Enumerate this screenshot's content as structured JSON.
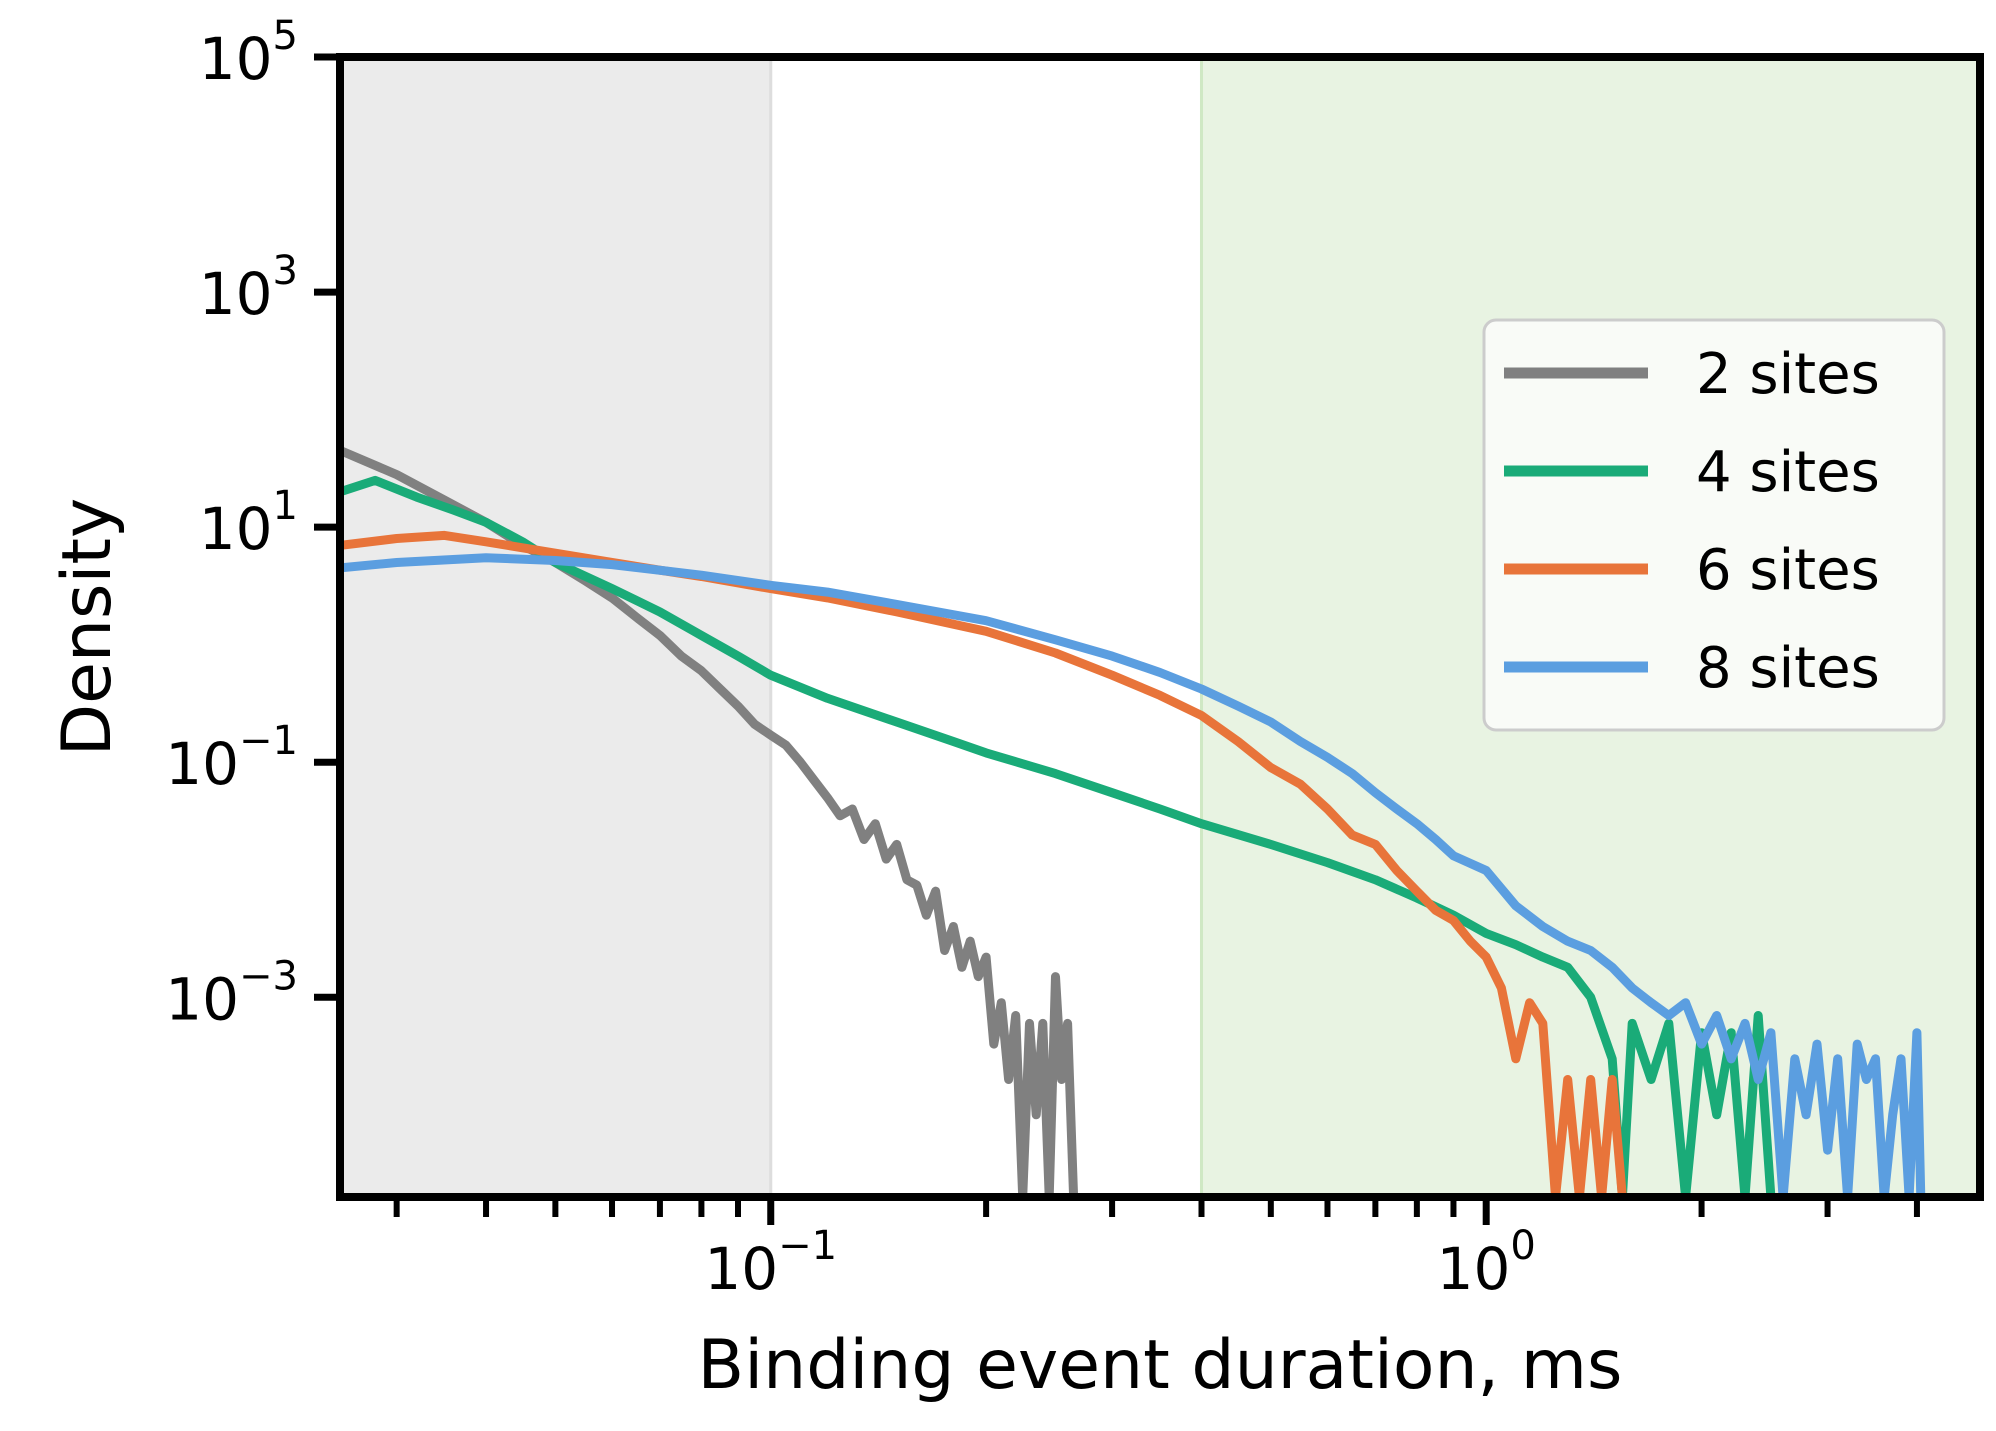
{
  "chart_data": {
    "type": "line",
    "title": "",
    "xlabel": "Binding event duration, ms",
    "ylabel": "Density",
    "xscale": "log",
    "yscale": "log",
    "xlim": [
      0.025,
      4.9
    ],
    "ylim": [
      2e-05,
      100000
    ],
    "grid": false,
    "legend_position": "center-right",
    "x_ticks": [
      {
        "base": "10",
        "exp": "−1",
        "value": 0.1
      },
      {
        "base": "10",
        "exp": "0",
        "value": 1
      }
    ],
    "y_ticks": [
      {
        "base": "10",
        "exp": "−3",
        "value": 0.001
      },
      {
        "base": "10",
        "exp": "−1",
        "value": 0.1
      },
      {
        "base": "10",
        "exp": "1",
        "value": 10
      },
      {
        "base": "10",
        "exp": "3",
        "value": 1000
      },
      {
        "base": "10",
        "exp": "5",
        "value": 100000
      }
    ],
    "shaded_regions": [
      {
        "x0": 0.025,
        "x1": 0.1,
        "color": "#ebebeb",
        "edge": "#dddddd"
      },
      {
        "x0": 0.4,
        "x1": 4.9,
        "color": "#e8f3e2",
        "edge": "#cfe8c4"
      }
    ],
    "series": [
      {
        "name": "2 sites",
        "color": "#808080",
        "points": [
          [
            0.025,
            45
          ],
          [
            0.03,
            28
          ],
          [
            0.035,
            17
          ],
          [
            0.04,
            11
          ],
          [
            0.045,
            7
          ],
          [
            0.05,
            5
          ],
          [
            0.055,
            3.5
          ],
          [
            0.06,
            2.5
          ],
          [
            0.065,
            1.7
          ],
          [
            0.07,
            1.2
          ],
          [
            0.075,
            0.8
          ],
          [
            0.08,
            0.6
          ],
          [
            0.085,
            0.42
          ],
          [
            0.09,
            0.3
          ],
          [
            0.095,
            0.21
          ],
          [
            0.1,
            0.17
          ],
          [
            0.105,
            0.14
          ],
          [
            0.11,
            0.1
          ],
          [
            0.115,
            0.07
          ],
          [
            0.12,
            0.05
          ],
          [
            0.125,
            0.035
          ],
          [
            0.13,
            0.04
          ],
          [
            0.135,
            0.022
          ],
          [
            0.14,
            0.03
          ],
          [
            0.145,
            0.015
          ],
          [
            0.15,
            0.02
          ],
          [
            0.155,
            0.01
          ],
          [
            0.16,
            0.009
          ],
          [
            0.165,
            0.005
          ],
          [
            0.17,
            0.008
          ],
          [
            0.175,
            0.0025
          ],
          [
            0.18,
            0.004
          ],
          [
            0.185,
            0.0018
          ],
          [
            0.19,
            0.003
          ],
          [
            0.195,
            0.0015
          ],
          [
            0.2,
            0.0022
          ],
          [
            0.205,
            0.0004
          ],
          [
            0.21,
            0.0009
          ],
          [
            0.215,
            0.0002
          ],
          [
            0.22,
            0.0007
          ],
          [
            0.225,
            2e-05
          ],
          [
            0.23,
            0.0006
          ],
          [
            0.235,
            0.0001
          ],
          [
            0.24,
            0.0006
          ],
          [
            0.245,
            2e-05
          ],
          [
            0.25,
            0.0015
          ],
          [
            0.255,
            0.0002
          ],
          [
            0.26,
            0.0006
          ],
          [
            0.265,
            2e-05
          ]
        ]
      },
      {
        "name": "4 sites",
        "color": "#1aab78",
        "points": [
          [
            0.025,
            20
          ],
          [
            0.028,
            25
          ],
          [
            0.032,
            18
          ],
          [
            0.036,
            14
          ],
          [
            0.04,
            11
          ],
          [
            0.045,
            7.5
          ],
          [
            0.05,
            5
          ],
          [
            0.06,
            3
          ],
          [
            0.07,
            1.9
          ],
          [
            0.08,
            1.2
          ],
          [
            0.09,
            0.8
          ],
          [
            0.1,
            0.55
          ],
          [
            0.12,
            0.35
          ],
          [
            0.15,
            0.22
          ],
          [
            0.18,
            0.15
          ],
          [
            0.2,
            0.12
          ],
          [
            0.25,
            0.08
          ],
          [
            0.3,
            0.055
          ],
          [
            0.35,
            0.04
          ],
          [
            0.4,
            0.03
          ],
          [
            0.5,
            0.02
          ],
          [
            0.6,
            0.014
          ],
          [
            0.7,
            0.01
          ],
          [
            0.8,
            0.007
          ],
          [
            0.9,
            0.005
          ],
          [
            1.0,
            0.0035
          ],
          [
            1.1,
            0.0028
          ],
          [
            1.2,
            0.0022
          ],
          [
            1.3,
            0.0018
          ],
          [
            1.4,
            0.001
          ],
          [
            1.5,
            0.0003
          ],
          [
            1.55,
            2e-05
          ],
          [
            1.6,
            0.0006
          ],
          [
            1.7,
            0.0002
          ],
          [
            1.8,
            0.0006
          ],
          [
            1.9,
            2e-05
          ],
          [
            2.0,
            0.0005
          ],
          [
            2.1,
            0.0001
          ],
          [
            2.2,
            0.0005
          ],
          [
            2.3,
            2e-05
          ],
          [
            2.4,
            0.0007
          ],
          [
            2.5,
            2e-05
          ]
        ]
      },
      {
        "name": "6 sites",
        "color": "#e8743a",
        "points": [
          [
            0.025,
            7
          ],
          [
            0.03,
            8
          ],
          [
            0.035,
            8.5
          ],
          [
            0.04,
            7.5
          ],
          [
            0.05,
            6
          ],
          [
            0.06,
            5
          ],
          [
            0.07,
            4.3
          ],
          [
            0.08,
            3.8
          ],
          [
            0.1,
            3
          ],
          [
            0.12,
            2.5
          ],
          [
            0.15,
            1.9
          ],
          [
            0.2,
            1.3
          ],
          [
            0.25,
            0.85
          ],
          [
            0.3,
            0.55
          ],
          [
            0.35,
            0.37
          ],
          [
            0.4,
            0.25
          ],
          [
            0.45,
            0.15
          ],
          [
            0.5,
            0.09
          ],
          [
            0.55,
            0.065
          ],
          [
            0.6,
            0.04
          ],
          [
            0.65,
            0.024
          ],
          [
            0.7,
            0.02
          ],
          [
            0.75,
            0.012
          ],
          [
            0.8,
            0.008
          ],
          [
            0.85,
            0.0055
          ],
          [
            0.9,
            0.0045
          ],
          [
            0.95,
            0.003
          ],
          [
            1.0,
            0.0022
          ],
          [
            1.05,
            0.0012
          ],
          [
            1.1,
            0.0003
          ],
          [
            1.15,
            0.0009
          ],
          [
            1.2,
            0.0006
          ],
          [
            1.25,
            2e-05
          ],
          [
            1.3,
            0.0002
          ],
          [
            1.35,
            2e-05
          ],
          [
            1.4,
            0.0002
          ],
          [
            1.45,
            2e-05
          ],
          [
            1.5,
            0.0002
          ],
          [
            1.55,
            2e-05
          ]
        ]
      },
      {
        "name": "8 sites",
        "color": "#5b9ee0",
        "points": [
          [
            0.025,
            4.5
          ],
          [
            0.03,
            5
          ],
          [
            0.04,
            5.5
          ],
          [
            0.05,
            5.2
          ],
          [
            0.06,
            4.8
          ],
          [
            0.08,
            3.9
          ],
          [
            0.1,
            3.2
          ],
          [
            0.12,
            2.8
          ],
          [
            0.15,
            2.2
          ],
          [
            0.2,
            1.6
          ],
          [
            0.25,
            1.1
          ],
          [
            0.3,
            0.8
          ],
          [
            0.35,
            0.58
          ],
          [
            0.4,
            0.42
          ],
          [
            0.45,
            0.3
          ],
          [
            0.5,
            0.22
          ],
          [
            0.55,
            0.15
          ],
          [
            0.6,
            0.11
          ],
          [
            0.65,
            0.08
          ],
          [
            0.7,
            0.055
          ],
          [
            0.75,
            0.04
          ],
          [
            0.8,
            0.03
          ],
          [
            0.85,
            0.022
          ],
          [
            0.9,
            0.016
          ],
          [
            1.0,
            0.012
          ],
          [
            1.1,
            0.006
          ],
          [
            1.2,
            0.004
          ],
          [
            1.3,
            0.003
          ],
          [
            1.4,
            0.0025
          ],
          [
            1.5,
            0.0018
          ],
          [
            1.6,
            0.0012
          ],
          [
            1.7,
            0.0009
          ],
          [
            1.8,
            0.0007
          ],
          [
            1.9,
            0.0009
          ],
          [
            2.0,
            0.0004
          ],
          [
            2.1,
            0.0007
          ],
          [
            2.2,
            0.0003
          ],
          [
            2.3,
            0.0006
          ],
          [
            2.4,
            0.0002
          ],
          [
            2.5,
            0.0005
          ],
          [
            2.6,
            2e-05
          ],
          [
            2.7,
            0.0003
          ],
          [
            2.8,
            0.0001
          ],
          [
            2.9,
            0.0004
          ],
          [
            3.0,
            5e-05
          ],
          [
            3.1,
            0.0003
          ],
          [
            3.2,
            2e-05
          ],
          [
            3.3,
            0.0004
          ],
          [
            3.4,
            0.0002
          ],
          [
            3.5,
            0.0003
          ],
          [
            3.6,
            2e-05
          ],
          [
            3.7,
            0.0001
          ],
          [
            3.8,
            0.0003
          ],
          [
            3.9,
            2e-05
          ],
          [
            4.0,
            0.0005
          ],
          [
            4.05,
            2e-05
          ]
        ]
      }
    ]
  }
}
